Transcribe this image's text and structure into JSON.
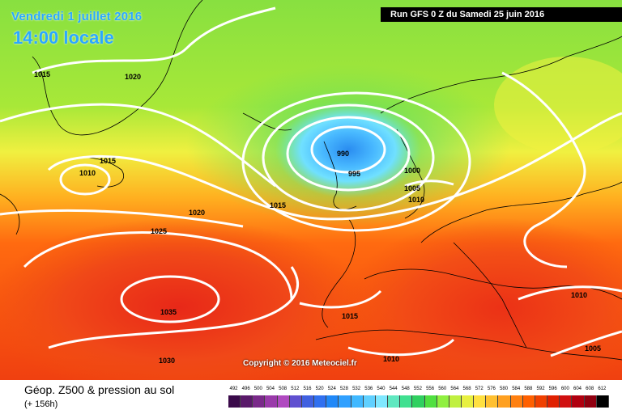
{
  "header": {
    "date": "Vendredi 1 juillet 2016",
    "time": "14:00 locale",
    "run": "Run GFS 0 Z du Samedi 25 juin 2016"
  },
  "footer": {
    "copyright": "Copyright © 2016 Meteociel.fr",
    "product": "Géop. Z500 & pression au sol",
    "lead": "(+ 156h)"
  },
  "isobars": {
    "labels": [
      "1015",
      "1020",
      "1015",
      "1010",
      "990",
      "995",
      "1000",
      "1005",
      "1010",
      "1015",
      "1020",
      "1025",
      "1035",
      "1015",
      "1010",
      "1030",
      "1010",
      "1005"
    ]
  },
  "legend": {
    "values": [
      "492",
      "496",
      "500",
      "504",
      "508",
      "512",
      "516",
      "520",
      "524",
      "528",
      "532",
      "536",
      "540",
      "544",
      "548",
      "552",
      "556",
      "560",
      "564",
      "568",
      "572",
      "576",
      "580",
      "584",
      "588",
      "592",
      "596",
      "600",
      "604",
      "608",
      "612"
    ],
    "colors": [
      "#3a0a4a",
      "#5a1a6a",
      "#7a2a8a",
      "#9a3aaa",
      "#b04ac0",
      "#6050d0",
      "#4060e0",
      "#3070f0",
      "#2088f8",
      "#30a0ff",
      "#40b8ff",
      "#60d0ff",
      "#80e8ff",
      "#60e8c0",
      "#40e090",
      "#30d060",
      "#50e040",
      "#90f040",
      "#c0f040",
      "#e8f040",
      "#ffe040",
      "#ffc030",
      "#ffa020",
      "#ff8010",
      "#ff6000",
      "#f04000",
      "#e02000",
      "#d01010",
      "#b00010",
      "#900010",
      "#000000"
    ]
  },
  "colors": {
    "title_blue": "#2aa8ff",
    "run_bg": "#000000",
    "isobar": "#ffffff"
  }
}
